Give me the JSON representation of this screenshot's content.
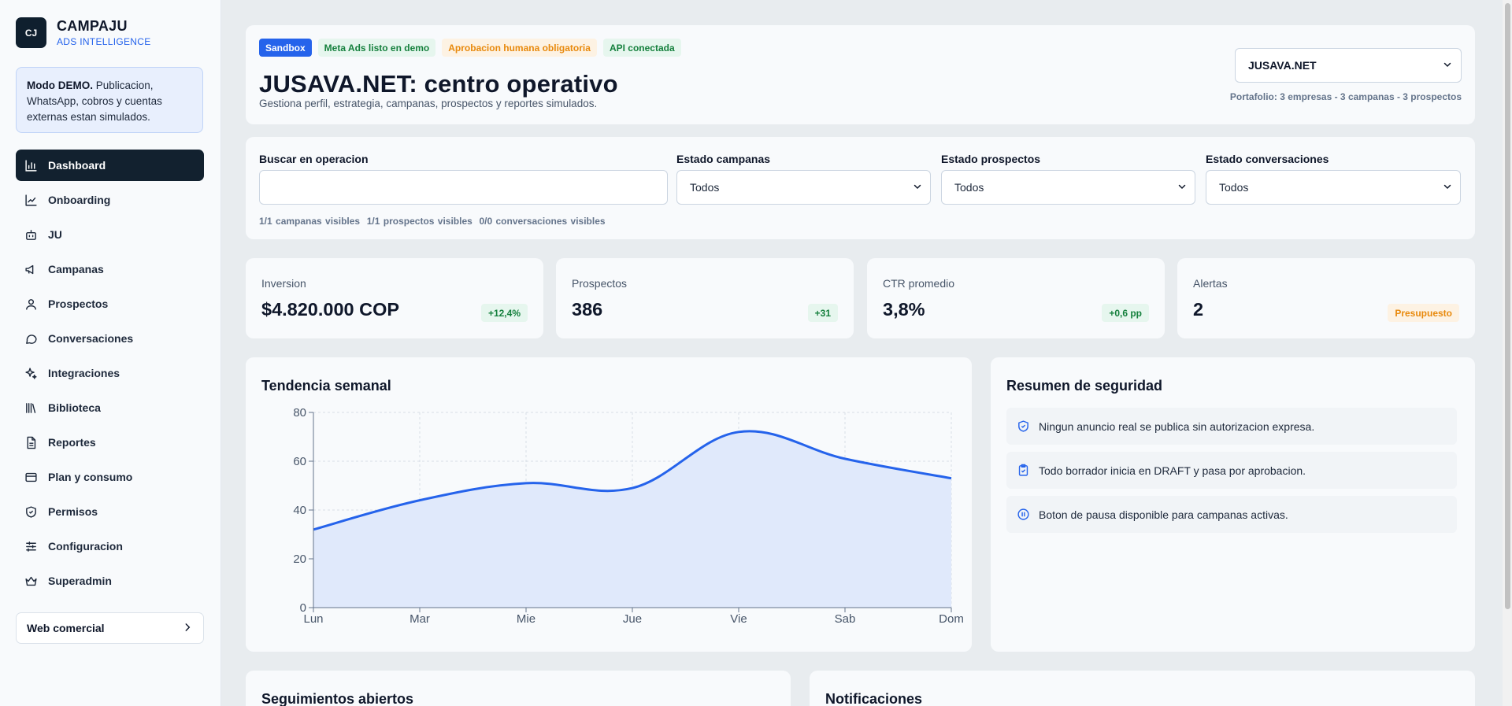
{
  "brand": {
    "logo": "CJ",
    "name": "CAMPAJU",
    "subtitle": "ADS INTELLIGENCE"
  },
  "demo_notice": {
    "bold": "Modo DEMO.",
    "text": " Publicacion, WhatsApp, cobros y cuentas externas estan simulados."
  },
  "sidebar": {
    "items": [
      {
        "label": "Dashboard",
        "icon": "bar-chart-icon",
        "active": true
      },
      {
        "label": "Onboarding",
        "icon": "line-chart-icon"
      },
      {
        "label": "JU",
        "icon": "bot-icon"
      },
      {
        "label": "Campanas",
        "icon": "megaphone-icon"
      },
      {
        "label": "Prospectos",
        "icon": "user-icon"
      },
      {
        "label": "Conversaciones",
        "icon": "chat-bubble-icon"
      },
      {
        "label": "Integraciones",
        "icon": "sparkles-icon"
      },
      {
        "label": "Biblioteca",
        "icon": "library-icon"
      },
      {
        "label": "Reportes",
        "icon": "document-icon"
      },
      {
        "label": "Plan y consumo",
        "icon": "credit-card-icon"
      },
      {
        "label": "Permisos",
        "icon": "shield-check-icon"
      },
      {
        "label": "Configuracion",
        "icon": "sliders-icon"
      },
      {
        "label": "Superadmin",
        "icon": "crown-icon"
      }
    ],
    "web_button": "Web comercial"
  },
  "header": {
    "badges": [
      {
        "label": "Sandbox",
        "bg": "#2563eb",
        "fg": "#ffffff"
      },
      {
        "label": "Meta Ads listo en demo",
        "bg": "#e6f6ee",
        "fg": "#15803d"
      },
      {
        "label": "Aprobacion humana obligatoria",
        "bg": "#fdf2e3",
        "fg": "#e8890c"
      },
      {
        "label": "API conectada",
        "bg": "#e6f6ee",
        "fg": "#15803d"
      }
    ],
    "title": "JUSAVA.NET: centro operativo",
    "subtitle": "Gestiona perfil, estrategia, campanas, prospectos y reportes simulados.",
    "company_select": "JUSAVA.NET",
    "portfolio": "Portafolio: 3 empresas - 3 campanas - 3 prospectos"
  },
  "filters": {
    "search_label": "Buscar en operacion",
    "search_value": "",
    "campaign_label": "Estado campanas",
    "campaign_value": "Todos",
    "prospect_label": "Estado prospectos",
    "prospect_value": "Todos",
    "conversation_label": "Estado conversaciones",
    "conversation_value": "Todos",
    "counts": "1/1 campanas visibles  1/1 prospectos visibles  0/0 conversaciones visibles"
  },
  "kpis": [
    {
      "label": "Inversion",
      "value": "$4.820.000 COP",
      "delta": "+12,4%",
      "delta_bg": "#e6f6ee",
      "delta_fg": "#15803d"
    },
    {
      "label": "Prospectos",
      "value": "386",
      "delta": "+31",
      "delta_bg": "#e6f6ee",
      "delta_fg": "#15803d"
    },
    {
      "label": "CTR promedio",
      "value": "3,8%",
      "delta": "+0,6 pp",
      "delta_bg": "#e6f6ee",
      "delta_fg": "#15803d"
    },
    {
      "label": "Alertas",
      "value": "2",
      "delta": "Presupuesto",
      "delta_bg": "#fdf2e3",
      "delta_fg": "#e8890c"
    }
  ],
  "trend": {
    "title": "Tendencia semanal"
  },
  "chart_data": {
    "type": "area",
    "categories": [
      "Lun",
      "Mar",
      "Mie",
      "Jue",
      "Vie",
      "Sab",
      "Dom"
    ],
    "values": [
      32,
      44,
      51,
      49,
      72,
      61,
      53
    ],
    "ylim": [
      0,
      80
    ],
    "yticks": [
      0,
      20,
      40,
      60,
      80
    ],
    "grid": true,
    "line_color": "#2563eb",
    "fill_color": "#e0e9fb"
  },
  "security": {
    "title": "Resumen de seguridad",
    "items": [
      {
        "icon": "shield-check-icon",
        "text": "Ningun anuncio real se publica sin autorizacion expresa."
      },
      {
        "icon": "clipboard-check-icon",
        "text": "Todo borrador inicia en DRAFT y pasa por aprobacion."
      },
      {
        "icon": "pause-circle-icon",
        "text": "Boton de pausa disponible para campanas activas."
      }
    ]
  },
  "bottom": {
    "followups_title": "Seguimientos abiertos",
    "notifications_title": "Notificaciones"
  }
}
